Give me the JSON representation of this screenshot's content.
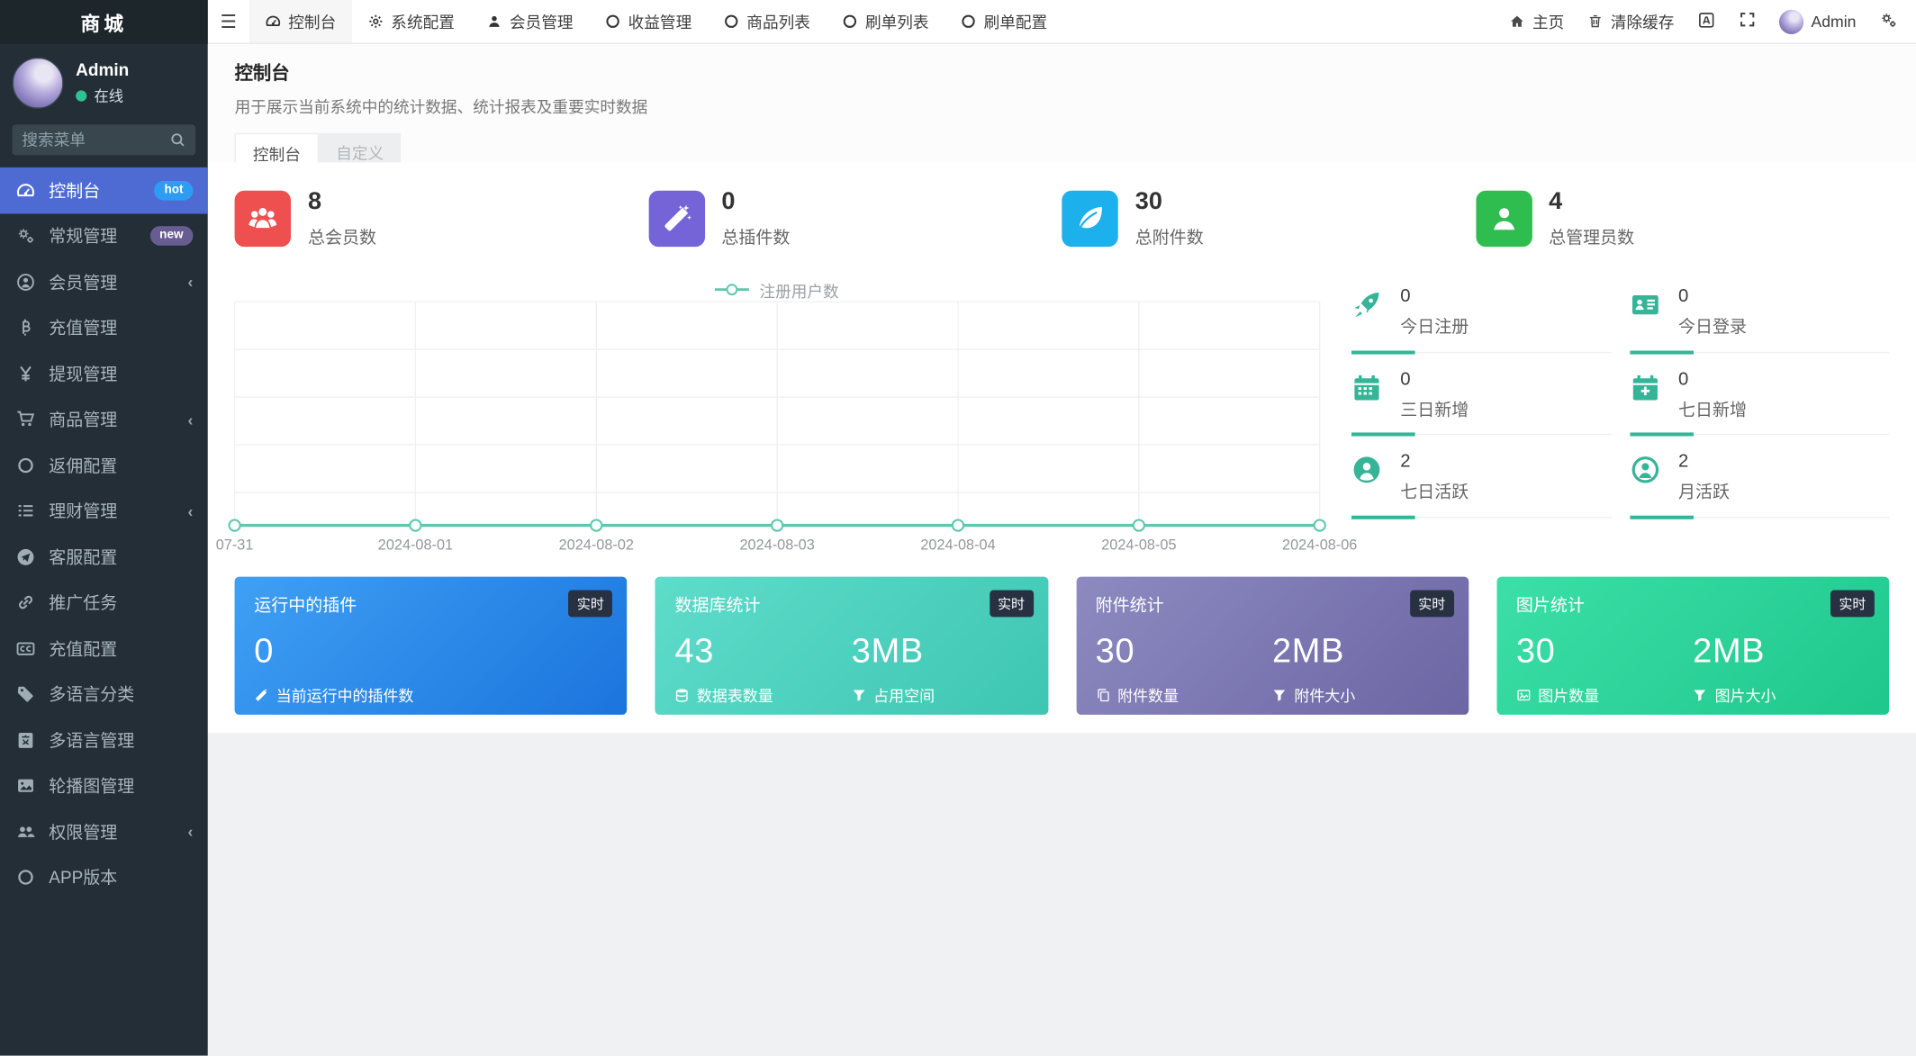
{
  "sidebar": {
    "title": "商城",
    "user": {
      "name": "Admin",
      "status": "在线"
    },
    "search_placeholder": "搜索菜单",
    "menu": [
      {
        "label": "控制台",
        "icon": "dashboard-icon",
        "badge": "hot",
        "active": true
      },
      {
        "label": "常规管理",
        "icon": "cogs-icon",
        "badge": "new"
      },
      {
        "label": "会员管理",
        "icon": "user-circle-icon",
        "chevron": "‹"
      },
      {
        "label": "充值管理",
        "icon": "bitcoin-icon"
      },
      {
        "label": "提现管理",
        "icon": "yen-icon"
      },
      {
        "label": "商品管理",
        "icon": "cart-icon",
        "chevron": "‹"
      },
      {
        "label": "返佣配置",
        "icon": "circle-icon"
      },
      {
        "label": "理财管理",
        "icon": "list-icon",
        "chevron": "‹"
      },
      {
        "label": "客服配置",
        "icon": "telegram-icon"
      },
      {
        "label": "推广任务",
        "icon": "link-icon"
      },
      {
        "label": "充值配置",
        "icon": "cc-icon"
      },
      {
        "label": "多语言分类",
        "icon": "tag-icon"
      },
      {
        "label": "多语言管理",
        "icon": "language-icon"
      },
      {
        "label": "轮播图管理",
        "icon": "image-icon"
      },
      {
        "label": "权限管理",
        "icon": "users-icon",
        "chevron": "‹"
      },
      {
        "label": "APP版本",
        "icon": "circle-icon"
      }
    ]
  },
  "topnav": {
    "hamburger_icon": "hamburger-icon",
    "tabs": [
      {
        "label": "控制台",
        "icon": "dashboard-icon",
        "active": true
      },
      {
        "label": "系统配置",
        "icon": "gear-icon"
      },
      {
        "label": "会员管理",
        "icon": "user-icon"
      },
      {
        "label": "收益管理",
        "icon": "circle-icon"
      },
      {
        "label": "商品列表",
        "icon": "circle-icon"
      },
      {
        "label": "刷单列表",
        "icon": "circle-icon"
      },
      {
        "label": "刷单配置",
        "icon": "circle-icon"
      }
    ],
    "right": {
      "home": "主页",
      "clear_cache": "清除缓存",
      "username": "Admin"
    }
  },
  "page": {
    "title": "控制台",
    "subtitle": "用于展示当前系统中的统计数据、统计报表及重要实时数据",
    "tabs": [
      {
        "label": "控制台",
        "active": true
      },
      {
        "label": "自定义",
        "active": false
      }
    ]
  },
  "stat_cards": [
    {
      "value": "8",
      "label": "总会员数",
      "icon": "users-group-icon",
      "color": "#ee4f4f"
    },
    {
      "value": "0",
      "label": "总插件数",
      "icon": "magic-wand-icon",
      "color": "#7464d8"
    },
    {
      "value": "30",
      "label": "总附件数",
      "icon": "leaf-icon",
      "color": "#1cb0ed"
    },
    {
      "value": "4",
      "label": "总管理员数",
      "icon": "user-icon",
      "color": "#2ebd4e"
    }
  ],
  "chart_data": {
    "type": "line",
    "legend": [
      "注册用户数"
    ],
    "legend_position": "top",
    "x": [
      "07-31",
      "2024-08-01",
      "2024-08-02",
      "2024-08-03",
      "2024-08-04",
      "2024-08-05",
      "2024-08-06"
    ],
    "series": [
      {
        "name": "注册用户数",
        "values": [
          0,
          0,
          0,
          0,
          0,
          0,
          0
        ]
      }
    ],
    "ylim": [
      0,
      1
    ],
    "grid": true,
    "line_color": "#5fc7ae",
    "grid_color": "#f0f0f0"
  },
  "quick_stats": [
    {
      "value": "0",
      "label": "今日注册",
      "icon": "rocket-icon"
    },
    {
      "value": "0",
      "label": "今日登录",
      "icon": "id-card-icon"
    },
    {
      "value": "0",
      "label": "三日新增",
      "icon": "calendar-icon"
    },
    {
      "value": "0",
      "label": "七日新增",
      "icon": "calendar-plus-icon"
    },
    {
      "value": "2",
      "label": "七日活跃",
      "icon": "user-circle-icon"
    },
    {
      "value": "2",
      "label": "月活跃",
      "icon": "user-circle-outline-icon"
    }
  ],
  "summary_cards": [
    {
      "title": "运行中的插件",
      "badge": "实时",
      "value": "0",
      "value2": "",
      "foot1": "当前运行中的插件数",
      "foot2": "",
      "icon1": "magic-wand-icon",
      "icon2": "",
      "gradient": [
        "#3fa0f4",
        "#1b74dd"
      ]
    },
    {
      "title": "数据库统计",
      "badge": "实时",
      "value": "43",
      "value2": "3MB",
      "foot1": "数据表数量",
      "foot2": "占用空间",
      "icon1": "database-icon",
      "icon2": "filter-icon",
      "gradient": [
        "#5edcca",
        "#3ec6b2"
      ]
    },
    {
      "title": "附件统计",
      "badge": "实时",
      "value": "30",
      "value2": "2MB",
      "foot1": "附件数量",
      "foot2": "附件大小",
      "icon1": "copy-icon",
      "icon2": "filter-icon",
      "gradient": [
        "#8d8ac0",
        "#6c66a4"
      ]
    },
    {
      "title": "图片统计",
      "badge": "实时",
      "value": "30",
      "value2": "2MB",
      "foot1": "图片数量",
      "foot2": "图片大小",
      "icon1": "image-icon",
      "icon2": "filter-icon",
      "gradient": [
        "#3bdfa7",
        "#1fc78d"
      ]
    }
  ],
  "colors": {
    "sidebar_bg": "#232e36",
    "sidebar_active": "#4d6bd2",
    "hot_badge": "#2d9cf4",
    "new_badge": "#675d92",
    "accent_teal": "#35b597",
    "chart_line": "#5fc7ae"
  }
}
